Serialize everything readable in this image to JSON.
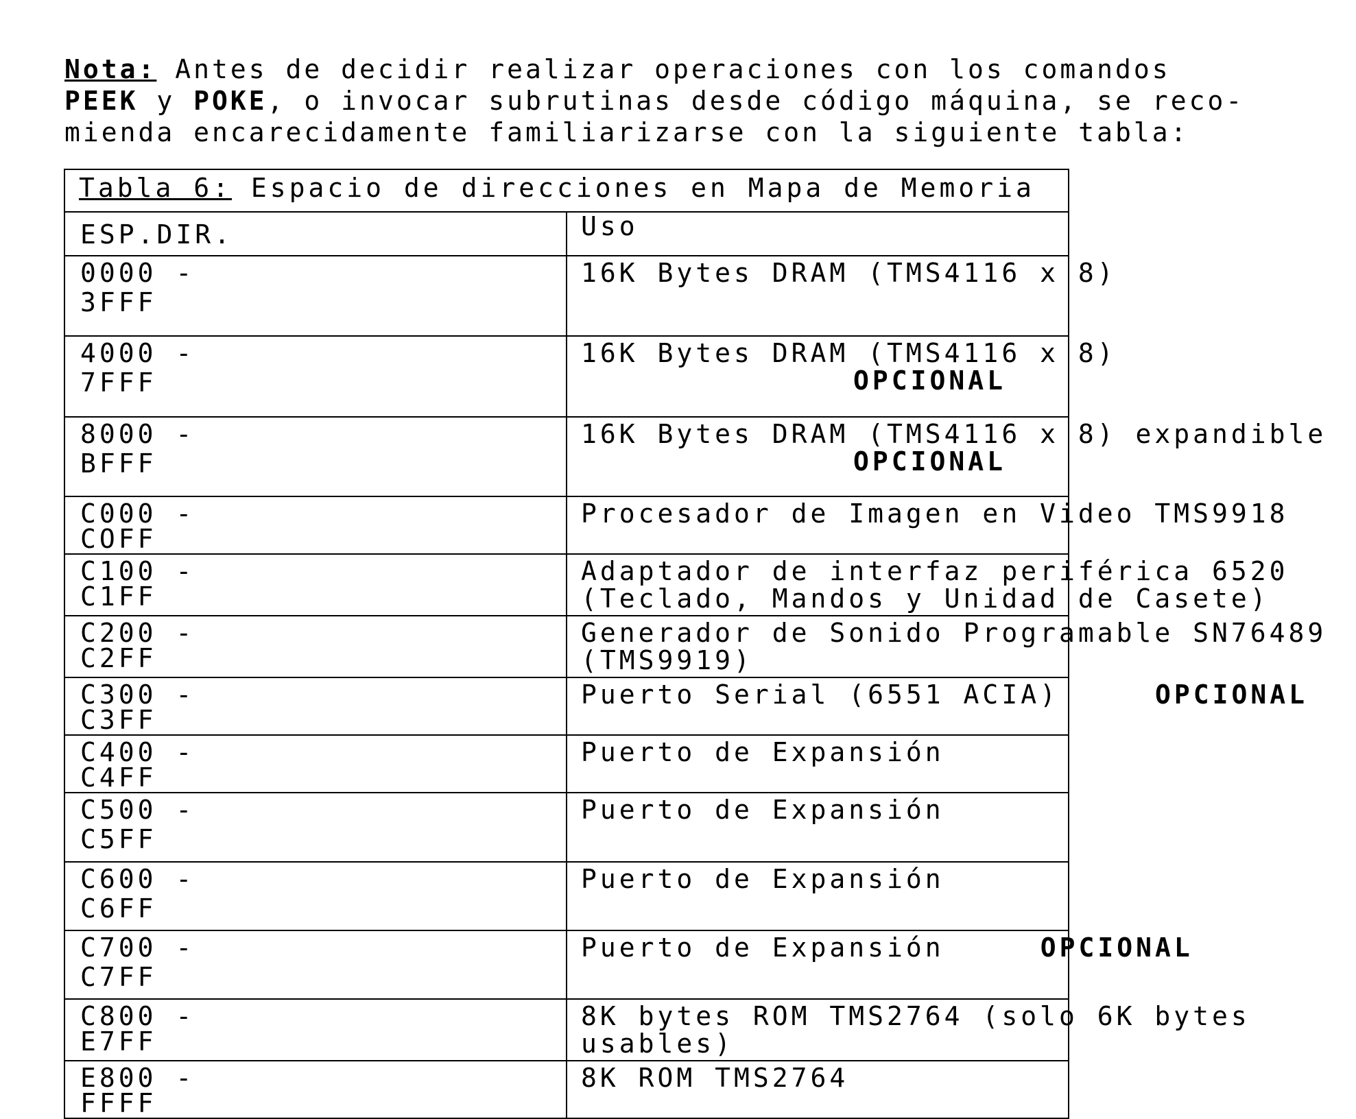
{
  "note": {
    "label": "Nota:",
    "line1": " Antes de decidir realizar operaciones con los comandos",
    "cmd1": "PEEK",
    "y": " y ",
    "cmd2": "POKE",
    "line2": ", o invocar subrutinas desde código máquina, se reco-",
    "line3": "mienda encarecidamente familiarizarse con la siguiente tabla:"
  },
  "table": {
    "title_label": "Tabla 6:",
    "title_text": " Espacio de direcciones en Mapa de Memoria",
    "col_addr": "ESP.DIR.",
    "col_use": "Uso",
    "rows": [
      {
        "from": "0000 -",
        "to": "3FFF",
        "use": "16K Bytes DRAM (TMS4116 x 8)",
        "opt": ""
      },
      {
        "from": "4000 -",
        "to": "7FFF",
        "use": "16K Bytes DRAM (TMS4116 x 8)",
        "opt": "OPCIONAL"
      },
      {
        "from": "8000 -",
        "to": "BFFF",
        "use": "16K Bytes DRAM (TMS4116 x 8) expandible",
        "opt": "OPCIONAL"
      },
      {
        "from": "C000 -",
        "to": "COFF",
        "use": "Procesador de Imagen en Video TMS9918",
        "opt": ""
      },
      {
        "from": "C100 -",
        "to": "C1FF",
        "use": "Adaptador de interfaz periférica 6520\n(Teclado, Mandos y Unidad de Casete)",
        "opt": ""
      },
      {
        "from": "C200 -",
        "to": "C2FF",
        "use": "Generador de Sonido Programable SN76489\n(TMS9919)",
        "opt": ""
      },
      {
        "from": "C300 -",
        "to": "C3FF",
        "use": "Puerto Serial (6551 ACIA)",
        "opt": "OPCIONAL"
      },
      {
        "from": "C400 -",
        "to": "C4FF",
        "use": "Puerto de Expansión",
        "opt": ""
      },
      {
        "from": "C500 -",
        "to": "C5FF",
        "use": "Puerto de Expansión",
        "opt": ""
      },
      {
        "from": "C600 -",
        "to": "C6FF",
        "use": "Puerto de Expansión",
        "opt": ""
      },
      {
        "from": "C700 -",
        "to": "C7FF",
        "use": "Puerto de Expansión",
        "opt": "OPCIONAL"
      },
      {
        "from": "C800 -",
        "to": "E7FF",
        "use": "8K bytes ROM TMS2764 (solo 6K bytes\nusables)",
        "opt": ""
      },
      {
        "from": "E800 -",
        "to": "FFFF",
        "use": "8K ROM TMS2764",
        "opt": ""
      }
    ]
  }
}
